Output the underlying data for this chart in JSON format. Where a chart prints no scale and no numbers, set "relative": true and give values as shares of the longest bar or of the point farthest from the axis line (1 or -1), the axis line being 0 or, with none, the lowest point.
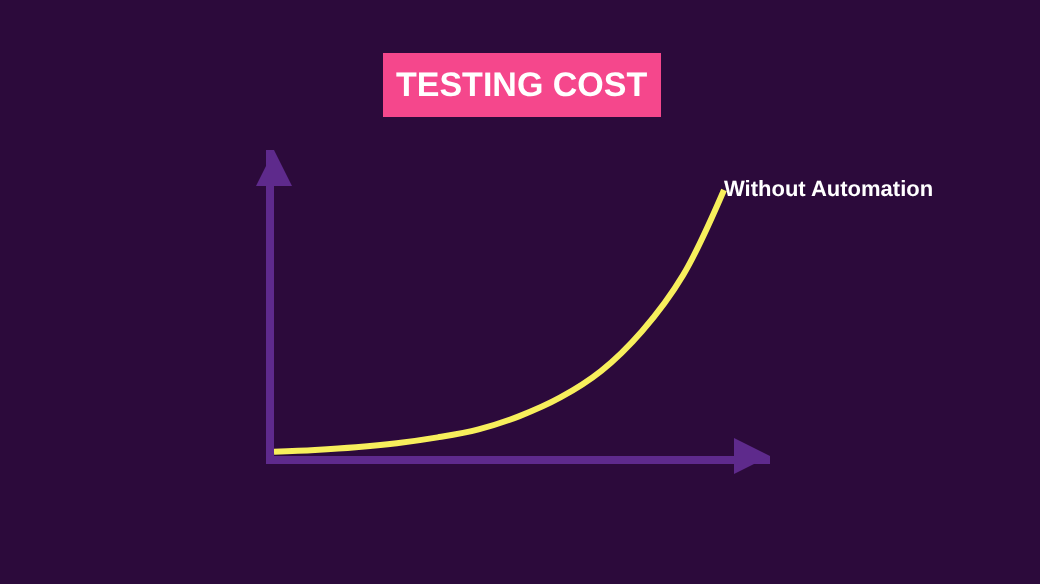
{
  "chart_data": {
    "type": "line",
    "title": "TESTING COST",
    "relative": true,
    "categories": [
      null,
      null,
      null,
      null,
      null,
      null,
      null,
      null,
      null,
      null,
      null,
      null
    ],
    "series": [
      {
        "name": "Without Automation",
        "color": "#f7ef5c",
        "values": [
          0.016,
          0.023,
          0.033,
          0.048,
          0.07,
          0.1,
          0.15,
          0.22,
          0.32,
          0.47,
          0.68,
          1
        ]
      }
    ],
    "legend": false,
    "grid": false,
    "marker": "none",
    "line_style": "solid"
  }
}
